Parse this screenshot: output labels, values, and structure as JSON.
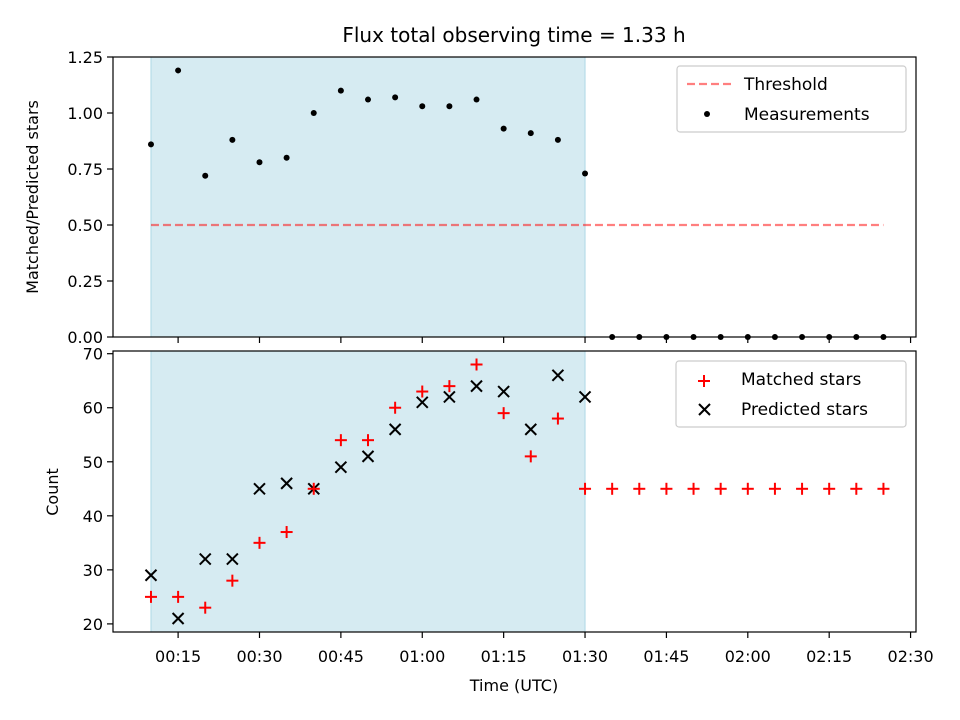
{
  "chart_data": [
    {
      "type": "scatter",
      "title": "Flux total observing time = 1.33 h",
      "xlabel": "",
      "ylabel": "Matched/Predicted stars",
      "ylim": [
        0,
        1.25
      ],
      "yticks": [
        "0.00",
        "0.25",
        "0.50",
        "0.75",
        "1.00",
        "1.25"
      ],
      "grid": false,
      "legend_position": "top-right",
      "shaded_span": {
        "start": "00:10",
        "end": "01:30",
        "color": "#add8e6"
      },
      "threshold": {
        "name": "Threshold",
        "value": 0.5,
        "x_start": "00:10",
        "x_end": "02:25",
        "color": "#ff0000"
      },
      "series": [
        {
          "name": "Measurements",
          "marker": "dot",
          "color": "#000000",
          "x": [
            "00:10",
            "00:15",
            "00:20",
            "00:25",
            "00:30",
            "00:35",
            "00:40",
            "00:45",
            "00:50",
            "00:55",
            "01:00",
            "01:05",
            "01:10",
            "01:15",
            "01:20",
            "01:25",
            "01:30",
            "01:35",
            "01:40",
            "01:45",
            "01:50",
            "01:55",
            "02:00",
            "02:05",
            "02:10",
            "02:15",
            "02:20",
            "02:25"
          ],
          "y": [
            0.86,
            1.19,
            0.72,
            0.88,
            0.78,
            0.8,
            1.0,
            1.1,
            1.06,
            1.07,
            1.03,
            1.03,
            1.06,
            0.93,
            0.91,
            0.88,
            0.73,
            0,
            0,
            0,
            0,
            0,
            0,
            0,
            0,
            0,
            0,
            0
          ]
        }
      ]
    },
    {
      "type": "scatter",
      "title": "",
      "xlabel": "Time (UTC)",
      "ylabel": "Count",
      "ylim": [
        18.5,
        70.5
      ],
      "yticks": [
        "20",
        "30",
        "40",
        "50",
        "60",
        "70"
      ],
      "xlim": [
        "00:03",
        "02:31"
      ],
      "xticks": [
        "00:15",
        "00:30",
        "00:45",
        "01:00",
        "01:15",
        "01:30",
        "01:45",
        "02:00",
        "02:15",
        "02:30"
      ],
      "grid": false,
      "legend_position": "top-right",
      "shaded_span": {
        "start": "00:10",
        "end": "01:30",
        "color": "#add8e6"
      },
      "series": [
        {
          "name": "Matched stars",
          "marker": "plus",
          "color": "#ff0000",
          "x": [
            "00:10",
            "00:15",
            "00:20",
            "00:25",
            "00:30",
            "00:35",
            "00:40",
            "00:45",
            "00:50",
            "00:55",
            "01:00",
            "01:05",
            "01:10",
            "01:15",
            "01:20",
            "01:25",
            "01:30",
            "01:35",
            "01:40",
            "01:45",
            "01:50",
            "01:55",
            "02:00",
            "02:05",
            "02:10",
            "02:15",
            "02:20",
            "02:25"
          ],
          "y": [
            25,
            25,
            23,
            28,
            35,
            37,
            45,
            54,
            54,
            60,
            63,
            64,
            68,
            59,
            51,
            58,
            45,
            45,
            45,
            45,
            45,
            45,
            45,
            45,
            45,
            45,
            45,
            45
          ]
        },
        {
          "name": "Predicted stars",
          "marker": "x",
          "color": "#000000",
          "x": [
            "00:10",
            "00:15",
            "00:20",
            "00:25",
            "00:30",
            "00:35",
            "00:40",
            "00:45",
            "00:50",
            "00:55",
            "01:00",
            "01:05",
            "01:10",
            "01:15",
            "01:20",
            "01:25",
            "01:30"
          ],
          "y": [
            29,
            21,
            32,
            32,
            45,
            46,
            45,
            49,
            51,
            56,
            61,
            62,
            64,
            63,
            56,
            66,
            62
          ]
        }
      ]
    }
  ]
}
